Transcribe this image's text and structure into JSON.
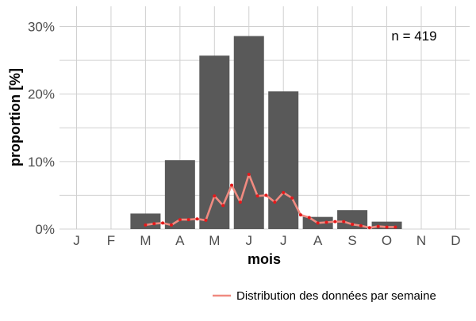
{
  "chart_data": {
    "type": "bar",
    "xlabel": "mois",
    "ylabel": "proportion [%]",
    "categories": [
      "J",
      "F",
      "M",
      "A",
      "M",
      "J",
      "J",
      "A",
      "S",
      "O",
      "N",
      "D"
    ],
    "values": [
      0,
      0,
      2.3,
      10.2,
      25.7,
      28.6,
      20.4,
      1.8,
      2.8,
      1.1,
      0,
      0
    ],
    "ylim": [
      0,
      33
    ],
    "yticks": [
      0,
      10,
      20,
      30
    ],
    "ytick_labels": [
      "0%",
      "10%",
      "20%",
      "30%"
    ],
    "grid": true,
    "annotation": "n = 419",
    "legend": {
      "position": "bottom-right",
      "entries": [
        "Distribution des données par semaine"
      ]
    },
    "colors": {
      "bar": "#595959",
      "line": "#f08a80",
      "points": "#e41a1c"
    },
    "weekly_series": {
      "name": "Distribution des données par semaine",
      "type": "line",
      "x": [
        3.0,
        3.25,
        3.5,
        3.75,
        4.0,
        4.25,
        4.5,
        4.75,
        5.0,
        5.25,
        5.5,
        5.75,
        6.0,
        6.25,
        6.5,
        6.75,
        7.0,
        7.25,
        7.5,
        7.75,
        8.0,
        8.25,
        8.5,
        8.75,
        9.0,
        9.25,
        9.5,
        9.75,
        10.0,
        10.25
      ],
      "y": [
        0.6,
        0.8,
        0.9,
        0.6,
        1.4,
        1.4,
        1.5,
        1.3,
        4.9,
        3.5,
        6.5,
        4.0,
        8.1,
        4.9,
        5.0,
        4.0,
        5.4,
        4.6,
        2.1,
        1.7,
        0.9,
        1.0,
        1.1,
        1.1,
        0.7,
        0.5,
        0.2,
        0.4,
        0.3,
        0.3
      ]
    }
  }
}
